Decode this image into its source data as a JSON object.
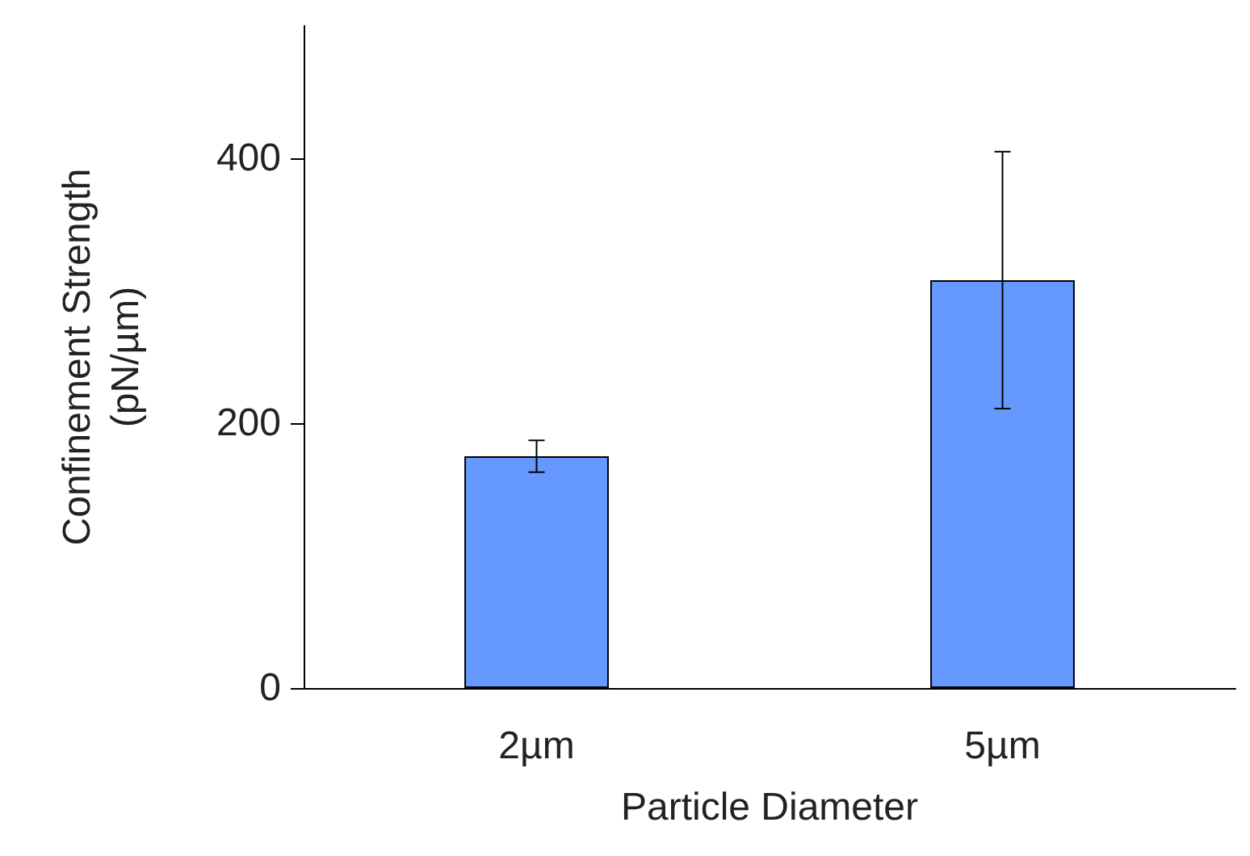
{
  "chart_data": {
    "type": "bar",
    "xlabel": "Particle Diameter",
    "ylabel": "Confinement Strength\n(pN/µm)",
    "categories": [
      "2µm",
      "5µm"
    ],
    "values": [
      175,
      308
    ],
    "errors": [
      12,
      97
    ],
    "color": "#6699ff",
    "ylim": [
      0,
      500
    ],
    "yticks": [
      0,
      200,
      400
    ],
    "grid": false
  }
}
